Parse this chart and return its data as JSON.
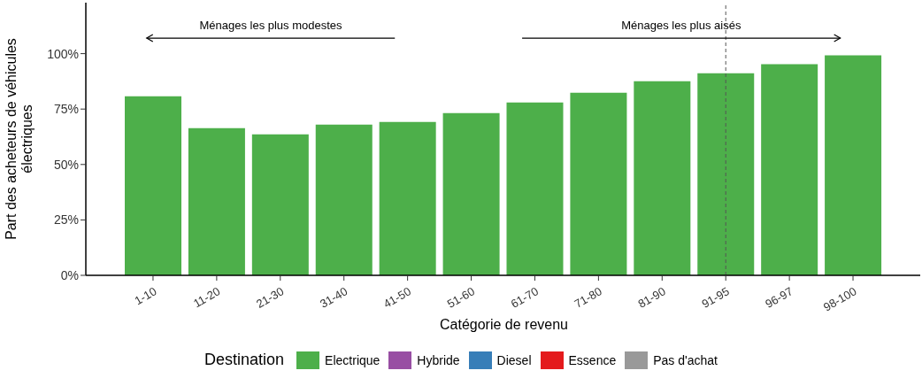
{
  "chart_data": {
    "type": "bar",
    "xlabel": "Catégorie de revenu",
    "ylabel": "Part des acheteurs de véhicules électriques",
    "legend_title": "Destination",
    "legend": "bottom",
    "stacked": true,
    "categories": [
      "1-10",
      "11-20",
      "21-30",
      "31-40",
      "41-50",
      "51-60",
      "61-70",
      "71-80",
      "81-90",
      "91-95",
      "96-97",
      "98-100"
    ],
    "ylim": [
      0,
      123
    ],
    "yticks": [
      {
        "value": 0,
        "label": "0%"
      },
      {
        "value": 25,
        "label": "25%"
      },
      {
        "value": 50,
        "label": "50%"
      },
      {
        "value": 75,
        "label": "75%"
      },
      {
        "value": 100,
        "label": "100%"
      }
    ],
    "series": [
      {
        "name": "Electrique",
        "color": "#4daf4a",
        "values": [
          80.8,
          66.4,
          63.6,
          68,
          69.2,
          73.2,
          78,
          82.4,
          87.6,
          91.2,
          95.2,
          99.2
        ]
      },
      {
        "name": "Hybride",
        "color": "#984ea3",
        "values": [
          null,
          null,
          null,
          null,
          null,
          null,
          null,
          null,
          null,
          null,
          null,
          null
        ]
      },
      {
        "name": "Diesel",
        "color": "#377eb8",
        "values": [
          null,
          null,
          null,
          null,
          null,
          null,
          null,
          null,
          null,
          null,
          null,
          null
        ]
      },
      {
        "name": "Essence",
        "color": "#e41a1c",
        "values": [
          null,
          null,
          null,
          null,
          null,
          null,
          null,
          null,
          null,
          null,
          null,
          null
        ]
      },
      {
        "name": "Pas d'achat",
        "color": "#999999",
        "values": [
          null,
          null,
          null,
          null,
          null,
          null,
          null,
          null,
          null,
          null,
          null,
          null
        ]
      }
    ],
    "ref_lines": [
      {
        "axis": "x",
        "value": "91-95",
        "line_style": "dashed",
        "color": "#555555"
      }
    ],
    "annotations": [
      "Ménages les plus modestes",
      "Ménages les plus aisés"
    ]
  }
}
